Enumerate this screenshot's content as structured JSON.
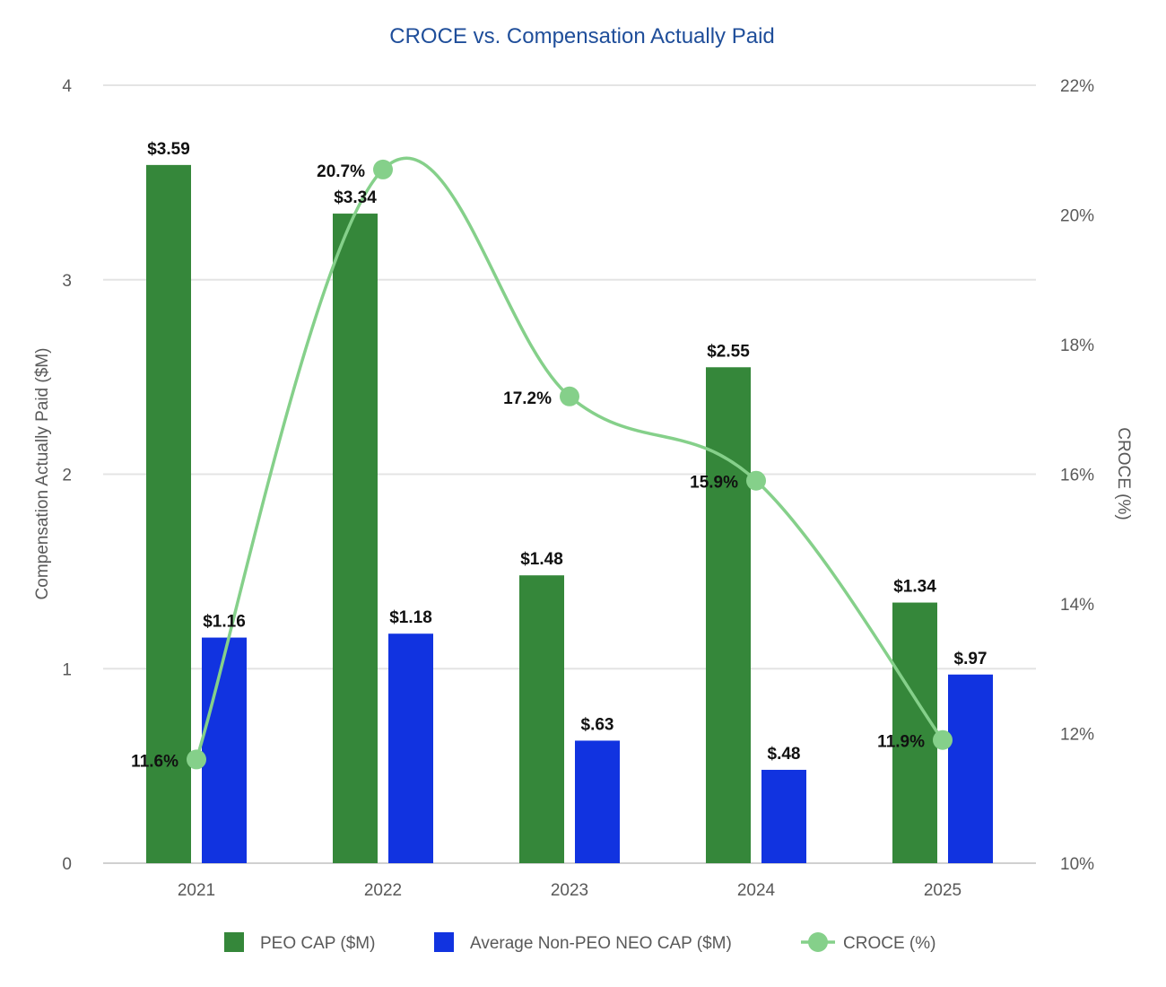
{
  "chart_data": {
    "type": "bar",
    "title": "CROCE vs. Compensation Actually Paid",
    "categories": [
      "2021",
      "2022",
      "2023",
      "2024",
      "2025"
    ],
    "series": [
      {
        "name": "PEO CAP ($M)",
        "kind": "bar",
        "axis": "left",
        "color": "#35873a",
        "values": [
          3.59,
          3.34,
          1.48,
          2.55,
          1.34
        ],
        "labels": [
          "$3.59",
          "$3.34",
          "$1.48",
          "$2.55",
          "$1.34"
        ]
      },
      {
        "name": "Average Non-PEO NEO CAP ($M)",
        "kind": "bar",
        "axis": "left",
        "color": "#1133e0",
        "values": [
          1.16,
          1.18,
          0.63,
          0.48,
          0.97
        ],
        "labels": [
          "$1.16",
          "$1.18",
          "$.63",
          "$.48",
          "$.97"
        ]
      },
      {
        "name": "CROCE (%)",
        "kind": "line",
        "axis": "right",
        "color": "#85d08a",
        "values": [
          11.6,
          20.7,
          17.2,
          15.9,
          11.9
        ],
        "labels": [
          "11.6%",
          "20.7%",
          "17.2%",
          "15.9%",
          "11.9%"
        ]
      }
    ],
    "ylabel": "Compensation Actually Paid ($M)",
    "ylim": [
      0,
      4
    ],
    "yticks": [
      "0",
      "1",
      "2",
      "3",
      "4"
    ],
    "y2label": "CROCE (%)",
    "y2lim": [
      10,
      22
    ],
    "y2ticks": [
      "10%",
      "12%",
      "14%",
      "16%",
      "18%",
      "20%",
      "22%"
    ],
    "grid": true,
    "legend_position": "bottom"
  }
}
